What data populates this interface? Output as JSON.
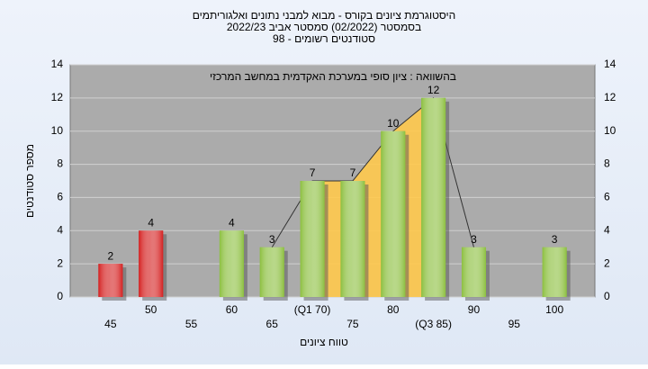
{
  "chart_data": {
    "type": "bar",
    "title": "היסטוגרמת ציונים בקורס - מבוא למבני נתונים ואלגוריתמים",
    "subtitle": "בסמסטר (02/2022) סמסטר אביב 2022/23",
    "subtitle2": "סטודנטים רשומים - 98",
    "annotation": "בהשוואה : ציון סופי במערכת האקדמית במחשב המרכזי",
    "x_label": "טווח ציונים",
    "y_label": "מספר סטודנטים",
    "categories": [
      "45",
      "50",
      "55",
      "60",
      "65",
      "(Q1 70)",
      "75",
      "80",
      "(Q3 85)",
      "90",
      "95",
      "100"
    ],
    "values": [
      2,
      4,
      null,
      4,
      3,
      7,
      7,
      10,
      12,
      3,
      null,
      3
    ],
    "colors": [
      "#d42020",
      "#d42020",
      null,
      "#8cbf3f",
      "#8cbf3f",
      "#8cbf3f",
      "#8cbf3f",
      "#8cbf3f",
      "#8cbf3f",
      "#8cbf3f",
      null,
      "#8cbf3f"
    ],
    "ylim": [
      0,
      14
    ],
    "yticks": [
      0,
      2,
      4,
      6,
      8,
      10,
      12,
      14
    ],
    "grid": true
  }
}
